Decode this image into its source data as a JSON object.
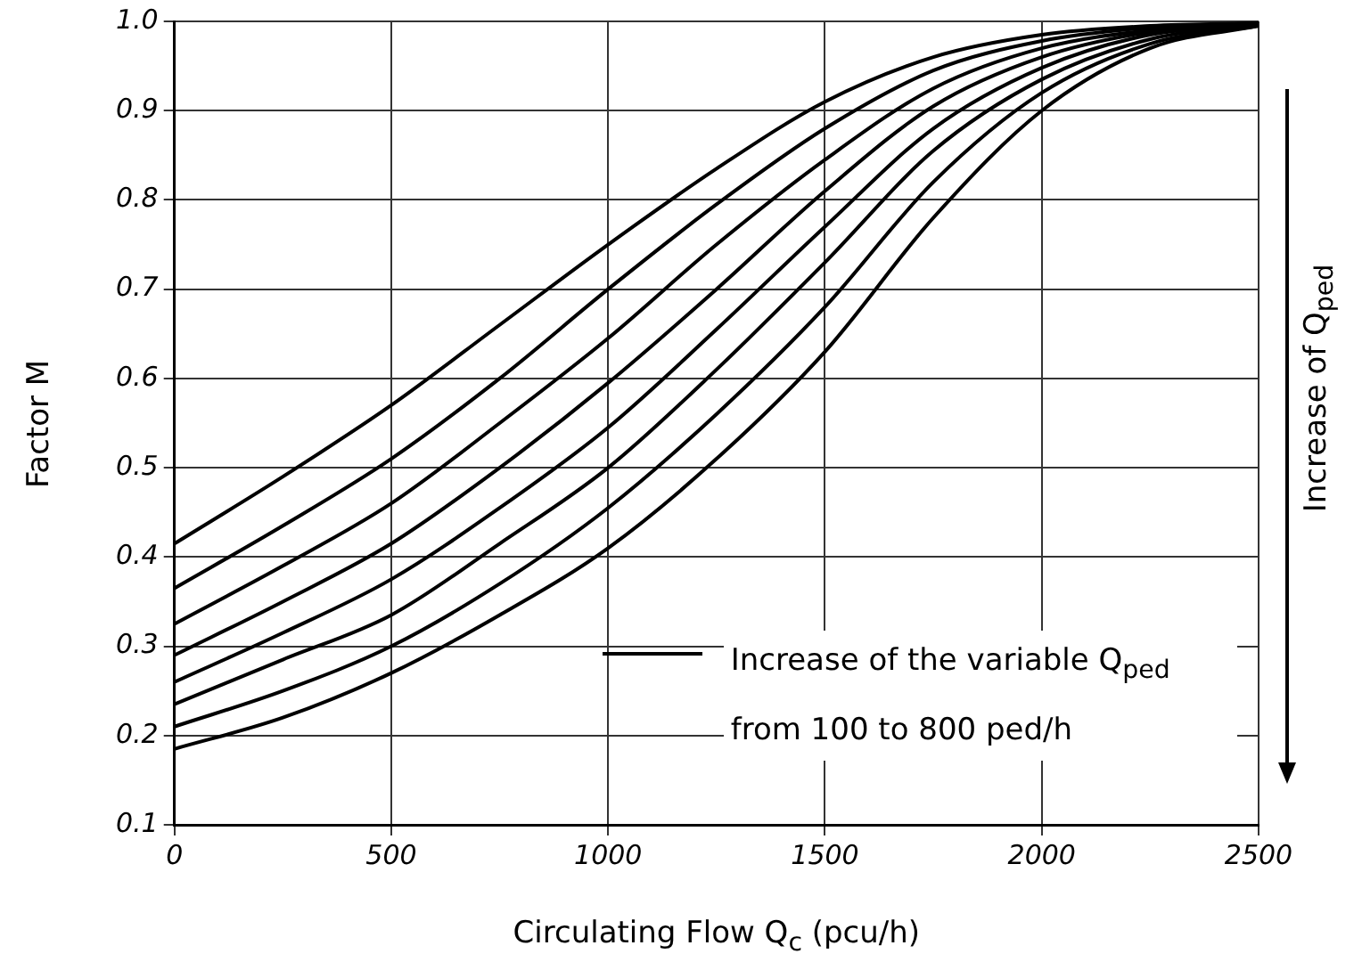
{
  "chart_data": {
    "type": "line",
    "xlabel": "Circulating Flow Q$_{c}$ (pcu/h)",
    "ylabel": "Factor M",
    "x": [
      0,
      250,
      500,
      750,
      1000,
      1250,
      1500,
      1750,
      2000,
      2250,
      2500
    ],
    "series": [
      {
        "color": "#000000",
        "values": [
          0.415,
          0.49,
          0.57,
          0.66,
          0.75,
          0.835,
          0.91,
          0.96,
          0.985,
          0.995,
          0.998
        ]
      },
      {
        "color": "#000000",
        "values": [
          0.365,
          0.435,
          0.51,
          0.6,
          0.7,
          0.795,
          0.88,
          0.945,
          0.978,
          0.993,
          0.998
        ]
      },
      {
        "color": "#000000",
        "values": [
          0.325,
          0.39,
          0.46,
          0.55,
          0.645,
          0.75,
          0.845,
          0.925,
          0.97,
          0.99,
          0.997
        ]
      },
      {
        "color": "#000000",
        "values": [
          0.29,
          0.35,
          0.415,
          0.5,
          0.595,
          0.7,
          0.81,
          0.905,
          0.96,
          0.988,
          0.997
        ]
      },
      {
        "color": "#000000",
        "values": [
          0.26,
          0.315,
          0.375,
          0.455,
          0.545,
          0.655,
          0.77,
          0.88,
          0.948,
          0.985,
          0.996
        ]
      },
      {
        "color": "#000000",
        "values": [
          0.235,
          0.285,
          0.335,
          0.415,
          0.5,
          0.61,
          0.73,
          0.855,
          0.935,
          0.98,
          0.996
        ]
      },
      {
        "color": "#000000",
        "values": [
          0.21,
          0.25,
          0.3,
          0.37,
          0.455,
          0.56,
          0.68,
          0.82,
          0.92,
          0.975,
          0.995
        ]
      },
      {
        "color": "#000000",
        "values": [
          0.185,
          0.22,
          0.27,
          0.335,
          0.41,
          0.51,
          0.63,
          0.78,
          0.9,
          0.97,
          0.995
        ]
      }
    ],
    "xlim": [
      0,
      2500
    ],
    "xticks": [
      0,
      500,
      1000,
      1500,
      2000,
      2500
    ],
    "ylim": [
      0.1,
      1.0
    ],
    "yticks": [
      {
        "value": 0.1,
        "label": "0.1"
      },
      {
        "value": 0.2,
        "label": "0.2"
      },
      {
        "value": 0.3,
        "label": "0.3"
      },
      {
        "value": 0.4,
        "label": "0.4"
      },
      {
        "value": 0.5,
        "label": "0.5"
      },
      {
        "value": 0.6,
        "label": "0.6"
      },
      {
        "value": 0.7,
        "label": "0.7"
      },
      {
        "value": 0.8,
        "label": "0.8"
      },
      {
        "value": 0.9,
        "label": "0.9"
      },
      {
        "value": 1.0,
        "label": "1.0"
      }
    ],
    "grid": true,
    "marker": "none",
    "line_style": "solid",
    "annotations": [
      "Increase of the variable Q$_{ped}$ from 100 to 800 ped/h",
      "Increase of Q$_{ped}$"
    ]
  }
}
